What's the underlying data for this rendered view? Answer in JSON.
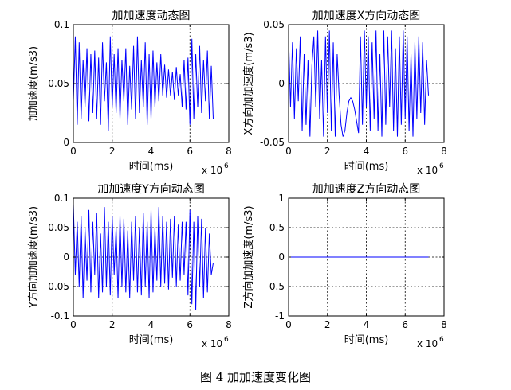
{
  "caption": "图 4  加加速度变化图",
  "chart_data": [
    {
      "type": "line",
      "title": "加加速度动态图",
      "xlabel": "时间(ms)",
      "ylabel": "加加速度(m/s3)",
      "x_exponent_label": "x 10",
      "x_exponent": "6",
      "xlim": [
        0,
        8
      ],
      "ylim": [
        0,
        0.1
      ],
      "xticks": [
        "0",
        "2",
        "4",
        "6",
        "8"
      ],
      "yticks": [
        "0",
        "0.05",
        "0.1"
      ],
      "grid": true,
      "series": [
        {
          "color": "#0000ff",
          "x": [
            0.0,
            0.1,
            0.2,
            0.3,
            0.4,
            0.5,
            0.6,
            0.7,
            0.8,
            0.9,
            1.0,
            1.1,
            1.2,
            1.3,
            1.4,
            1.5,
            1.6,
            1.7,
            1.8,
            1.9,
            2.0,
            2.1,
            2.2,
            2.3,
            2.4,
            2.5,
            2.6,
            2.7,
            2.8,
            2.9,
            3.0,
            3.1,
            3.2,
            3.3,
            3.4,
            3.5,
            3.6,
            3.7,
            3.8,
            3.9,
            4.0,
            4.1,
            4.2,
            4.3,
            4.4,
            4.5,
            4.6,
            4.7,
            4.8,
            4.9,
            5.0,
            5.1,
            5.2,
            5.3,
            5.4,
            5.5,
            5.6,
            5.7,
            5.8,
            5.9,
            6.0,
            6.1,
            6.2,
            6.3,
            6.4,
            6.5,
            6.6,
            6.7,
            6.8,
            6.9,
            7.0,
            7.1,
            7.2
          ],
          "values": [
            0.035,
            0.09,
            0.015,
            0.085,
            0.02,
            0.07,
            0.03,
            0.08,
            0.018,
            0.075,
            0.025,
            0.078,
            0.02,
            0.072,
            0.015,
            0.085,
            0.035,
            0.068,
            0.01,
            0.09,
            0.03,
            0.075,
            0.025,
            0.08,
            0.02,
            0.07,
            0.035,
            0.08,
            0.015,
            0.065,
            0.028,
            0.082,
            0.02,
            0.09,
            0.025,
            0.07,
            0.03,
            0.085,
            0.015,
            0.075,
            0.02,
            0.078,
            0.03,
            0.068,
            0.035,
            0.075,
            0.04,
            0.066,
            0.038,
            0.062,
            0.04,
            0.06,
            0.036,
            0.064,
            0.04,
            0.058,
            0.03,
            0.07,
            0.028,
            0.072,
            0.015,
            0.088,
            0.02,
            0.075,
            0.03,
            0.082,
            0.025,
            0.07,
            0.035,
            0.078,
            0.02,
            0.065,
            0.02
          ]
        }
      ]
    },
    {
      "type": "line",
      "title": "加加速度X方向动态图",
      "xlabel": "时间(ms)",
      "ylabel": "X方向加加速度(m/s3)",
      "x_exponent_label": "x 10",
      "x_exponent": "6",
      "xlim": [
        0,
        8
      ],
      "ylim": [
        -0.05,
        0.05
      ],
      "xticks": [
        "0",
        "2",
        "4",
        "6",
        "8"
      ],
      "yticks": [
        "-0.05",
        "0",
        "0.05"
      ],
      "grid": true,
      "series": [
        {
          "color": "#0000ff",
          "x": [
            0.0,
            0.1,
            0.2,
            0.3,
            0.4,
            0.5,
            0.6,
            0.7,
            0.8,
            0.9,
            1.0,
            1.1,
            1.2,
            1.3,
            1.4,
            1.5,
            1.6,
            1.7,
            1.8,
            1.9,
            2.0,
            2.1,
            2.2,
            2.3,
            2.4,
            2.5,
            2.6,
            2.7,
            2.8,
            2.9,
            3.0,
            3.1,
            3.2,
            3.3,
            3.4,
            3.5,
            3.6,
            3.7,
            3.8,
            3.9,
            4.0,
            4.1,
            4.2,
            4.3,
            4.4,
            4.5,
            4.6,
            4.7,
            4.8,
            4.9,
            5.0,
            5.1,
            5.2,
            5.3,
            5.4,
            5.5,
            5.6,
            5.7,
            5.8,
            5.9,
            6.0,
            6.1,
            6.2,
            6.3,
            6.4,
            6.5,
            6.6,
            6.7,
            6.8,
            6.9,
            7.0,
            7.1,
            7.2
          ],
          "values": [
            0.04,
            -0.02,
            0.035,
            -0.03,
            0.03,
            -0.015,
            0.04,
            -0.04,
            0.025,
            -0.035,
            0.02,
            -0.045,
            0.015,
            0.04,
            -0.02,
            0.045,
            -0.03,
            0.02,
            -0.045,
            0.04,
            -0.025,
            0.045,
            -0.04,
            0.035,
            -0.045,
            0.025,
            -0.01,
            -0.035,
            -0.045,
            -0.04,
            -0.025,
            -0.015,
            -0.012,
            -0.015,
            -0.022,
            -0.032,
            -0.042,
            0.04,
            -0.035,
            0.045,
            -0.02,
            0.04,
            -0.04,
            0.035,
            -0.03,
            0.045,
            -0.04,
            0.025,
            -0.045,
            0.045,
            -0.035,
            0.04,
            -0.02,
            0.045,
            -0.04,
            0.03,
            -0.045,
            0.04,
            -0.035,
            0.045,
            -0.03,
            0.04,
            -0.04,
            0.025,
            -0.045,
            0.035,
            -0.03,
            0.04,
            -0.025,
            0.035,
            -0.035,
            0.02,
            -0.01
          ]
        }
      ]
    },
    {
      "type": "line",
      "title": "加加速度Y方向动态图",
      "xlabel": "时间(ms)",
      "ylabel": "Y方向加加速度(m/s3)",
      "x_exponent_label": "x 10",
      "x_exponent": "6",
      "xlim": [
        0,
        8
      ],
      "ylim": [
        -0.1,
        0.1
      ],
      "xticks": [
        "0",
        "2",
        "4",
        "6",
        "8"
      ],
      "yticks": [
        "-0.1",
        "-0.05",
        "0",
        "0.05",
        "0.1"
      ],
      "grid": true,
      "series": [
        {
          "color": "#0000ff",
          "x": [
            0.0,
            0.1,
            0.2,
            0.3,
            0.4,
            0.5,
            0.6,
            0.7,
            0.8,
            0.9,
            1.0,
            1.1,
            1.2,
            1.3,
            1.4,
            1.5,
            1.6,
            1.7,
            1.8,
            1.9,
            2.0,
            2.1,
            2.2,
            2.3,
            2.4,
            2.5,
            2.6,
            2.7,
            2.8,
            2.9,
            3.0,
            3.1,
            3.2,
            3.3,
            3.4,
            3.5,
            3.6,
            3.7,
            3.8,
            3.9,
            4.0,
            4.1,
            4.2,
            4.3,
            4.4,
            4.5,
            4.6,
            4.7,
            4.8,
            4.9,
            5.0,
            5.1,
            5.2,
            5.3,
            5.4,
            5.5,
            5.6,
            5.7,
            5.8,
            5.9,
            6.0,
            6.1,
            6.2,
            6.3,
            6.4,
            6.5,
            6.6,
            6.7,
            6.8,
            6.9,
            7.0,
            7.1,
            7.2
          ],
          "values": [
            0.09,
            -0.03,
            0.06,
            -0.05,
            0.07,
            -0.07,
            0.05,
            -0.04,
            0.08,
            -0.06,
            0.06,
            -0.03,
            0.075,
            -0.07,
            0.04,
            -0.06,
            0.085,
            -0.05,
            0.06,
            -0.065,
            0.07,
            -0.03,
            0.05,
            -0.07,
            0.07,
            -0.05,
            0.065,
            -0.06,
            0.045,
            -0.07,
            0.06,
            -0.04,
            0.07,
            -0.06,
            0.05,
            -0.065,
            0.075,
            -0.05,
            0.06,
            -0.07,
            0.08,
            -0.06,
            0.05,
            -0.04,
            0.085,
            -0.05,
            0.07,
            -0.045,
            0.06,
            -0.055,
            0.065,
            -0.035,
            0.07,
            -0.05,
            0.055,
            -0.04,
            0.06,
            -0.03,
            0.06,
            -0.065,
            0.08,
            -0.08,
            0.06,
            -0.09,
            0.07,
            -0.05,
            0.065,
            -0.07,
            0.05,
            -0.06,
            0.04,
            -0.03,
            -0.01
          ]
        }
      ]
    },
    {
      "type": "line",
      "title": "加加速度Z方向动态图",
      "xlabel": "时间(ms)",
      "ylabel": "Z方向加加速度(m/s3)",
      "x_exponent_label": "x 10",
      "x_exponent": "6",
      "xlim": [
        0,
        8
      ],
      "ylim": [
        -1,
        1
      ],
      "xticks": [
        "0",
        "2",
        "4",
        "6",
        "8"
      ],
      "yticks": [
        "-1",
        "-0.5",
        "0",
        "0.5",
        "1"
      ],
      "grid": true,
      "series": [
        {
          "color": "#0000ff",
          "x": [
            0.0,
            7.2
          ],
          "values": [
            0,
            0
          ]
        }
      ]
    }
  ]
}
